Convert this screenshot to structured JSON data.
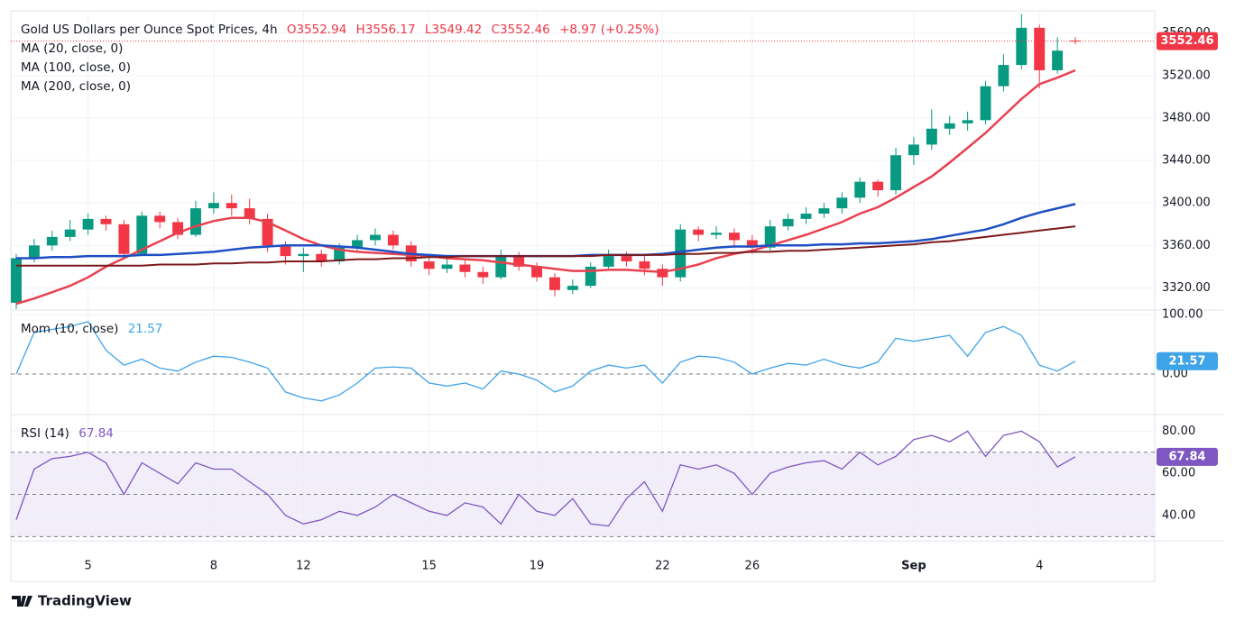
{
  "brand": "TradingView",
  "chart_data": [
    {
      "type": "candlestick",
      "title": "Gold US Dollars per Ounce Spot Prices, 4h",
      "header_values": [
        "O3552.94",
        "H3556.17",
        "L3549.42",
        "C3552.46",
        "+8.97 (+0.25%)"
      ],
      "categories": [
        null,
        null,
        null,
        null,
        "5",
        null,
        null,
        null,
        null,
        null,
        null,
        "8",
        null,
        null,
        null,
        null,
        "12",
        null,
        null,
        null,
        null,
        null,
        null,
        "15",
        null,
        null,
        null,
        null,
        null,
        "19",
        null,
        null,
        null,
        null,
        null,
        null,
        "22",
        null,
        null,
        null,
        null,
        "26",
        null,
        null,
        null,
        null,
        null,
        null,
        null,
        null,
        "Sep",
        null,
        null,
        null,
        null,
        null,
        null,
        "4",
        null,
        null
      ],
      "open": [
        3306,
        3348,
        3360,
        3368,
        3375,
        3385,
        3380,
        3352,
        3388,
        3382,
        3370,
        3395,
        3400,
        3395,
        3385,
        3360,
        3350,
        3352,
        3345,
        3358,
        3365,
        3370,
        3360,
        3345,
        3338,
        3342,
        3335,
        3330,
        3350,
        3340,
        3330,
        3318,
        3322,
        3340,
        3350,
        3345,
        3338,
        3330,
        3375,
        3370,
        3372,
        3365,
        3358,
        3378,
        3385,
        3390,
        3395,
        3405,
        3420,
        3412,
        3445,
        3455,
        3470,
        3475,
        3478,
        3510,
        3530,
        3565,
        3525,
        3552.94
      ],
      "high": [
        3352,
        3366,
        3374,
        3384,
        3390,
        3388,
        3384,
        3392,
        3392,
        3386,
        3402,
        3410,
        3408,
        3404,
        3390,
        3364,
        3358,
        3356,
        3362,
        3370,
        3376,
        3374,
        3364,
        3350,
        3348,
        3346,
        3340,
        3356,
        3354,
        3344,
        3334,
        3328,
        3344,
        3356,
        3354,
        3350,
        3342,
        3380,
        3378,
        3378,
        3376,
        3370,
        3384,
        3390,
        3396,
        3400,
        3410,
        3424,
        3422,
        3452,
        3462,
        3488,
        3482,
        3486,
        3515,
        3540,
        3578,
        3568,
        3556,
        3556.17
      ],
      "low": [
        3300,
        3344,
        3355,
        3364,
        3370,
        3374,
        3348,
        3350,
        3376,
        3366,
        3368,
        3390,
        3388,
        3380,
        3354,
        3342,
        3335,
        3340,
        3342,
        3354,
        3360,
        3356,
        3340,
        3332,
        3334,
        3330,
        3324,
        3328,
        3336,
        3326,
        3312,
        3314,
        3320,
        3336,
        3340,
        3332,
        3322,
        3326,
        3364,
        3366,
        3360,
        3352,
        3355,
        3374,
        3380,
        3386,
        3390,
        3400,
        3406,
        3408,
        3436,
        3450,
        3464,
        3468,
        3474,
        3505,
        3526,
        3508,
        3522,
        3549.42
      ],
      "close": [
        3348,
        3360,
        3368,
        3375,
        3385,
        3380,
        3352,
        3388,
        3382,
        3370,
        3395,
        3400,
        3395,
        3385,
        3360,
        3350,
        3352,
        3345,
        3358,
        3365,
        3370,
        3360,
        3345,
        3338,
        3342,
        3335,
        3330,
        3350,
        3340,
        3330,
        3318,
        3322,
        3340,
        3350,
        3345,
        3338,
        3330,
        3375,
        3370,
        3372,
        3365,
        3358,
        3378,
        3385,
        3390,
        3395,
        3405,
        3420,
        3412,
        3445,
        3455,
        3470,
        3475,
        3478,
        3510,
        3530,
        3565,
        3525,
        3543.49,
        3552.46
      ],
      "up_color": "#089981",
      "down_color": "#f23645",
      "series": [
        {
          "name": "MA (20, close, 0)",
          "color": "#e8414f",
          "values": [
            3305,
            3310,
            3316,
            3322,
            3330,
            3340,
            3348,
            3356,
            3364,
            3372,
            3378,
            3383,
            3386,
            3386,
            3382,
            3374,
            3366,
            3360,
            3356,
            3354,
            3353,
            3352,
            3351,
            3350,
            3348,
            3347,
            3346,
            3344,
            3342,
            3340,
            3338,
            3336,
            3336,
            3337,
            3337,
            3336,
            3335,
            3338,
            3342,
            3348,
            3352,
            3355,
            3360,
            3365,
            3370,
            3376,
            3382,
            3390,
            3396,
            3405,
            3415,
            3425,
            3438,
            3452,
            3466,
            3482,
            3498,
            3512,
            3518,
            3525
          ]
        },
        {
          "name": "MA (100, close, 0)",
          "color": "#1e4fc4",
          "values": [
            3348,
            3348,
            3349,
            3349,
            3350,
            3350,
            3350,
            3351,
            3351,
            3352,
            3353,
            3354,
            3356,
            3358,
            3359,
            3360,
            3360,
            3360,
            3359,
            3358,
            3356,
            3354,
            3352,
            3351,
            3350,
            3350,
            3350,
            3350,
            3350,
            3350,
            3350,
            3350,
            3351,
            3351,
            3351,
            3351,
            3352,
            3354,
            3356,
            3358,
            3359,
            3359,
            3360,
            3360,
            3360,
            3361,
            3361,
            3362,
            3362,
            3363,
            3364,
            3366,
            3369,
            3372,
            3375,
            3380,
            3386,
            3391,
            3395,
            3399
          ]
        },
        {
          "name": "MA (200, close, 0)",
          "color": "#7b1a1a",
          "values": [
            3341,
            3341,
            3341,
            3341,
            3341,
            3341,
            3341,
            3341,
            3342,
            3342,
            3342,
            3343,
            3343,
            3344,
            3344,
            3345,
            3345,
            3345,
            3346,
            3347,
            3347,
            3348,
            3348,
            3349,
            3349,
            3350,
            3350,
            3350,
            3350,
            3350,
            3350,
            3350,
            3350,
            3351,
            3351,
            3351,
            3351,
            3352,
            3352,
            3353,
            3353,
            3354,
            3354,
            3355,
            3355,
            3356,
            3357,
            3358,
            3359,
            3360,
            3361,
            3363,
            3364,
            3366,
            3368,
            3370,
            3372,
            3374,
            3376,
            3378
          ]
        }
      ],
      "ylim": [
        3300,
        3581
      ],
      "yticks": [
        {
          "value": 3320,
          "label": "3320.00"
        },
        {
          "value": 3360,
          "label": "3360.00"
        },
        {
          "value": 3400,
          "label": "3400.00"
        },
        {
          "value": 3440,
          "label": "3440.00"
        },
        {
          "value": 3480,
          "label": "3480.00"
        },
        {
          "value": 3520,
          "label": "3520.00"
        },
        {
          "value": 3560,
          "label": "3560.00"
        }
      ],
      "grid": true
    },
    {
      "type": "line",
      "series": [
        {
          "name": "Mom (10, close)",
          "color": "#3fa3e8",
          "values": [
            0,
            70,
            75,
            80,
            88,
            40,
            15,
            25,
            10,
            5,
            20,
            30,
            28,
            20,
            10,
            -30,
            -40,
            -45,
            -35,
            -15,
            10,
            12,
            10,
            -15,
            -20,
            -15,
            -25,
            5,
            0,
            -10,
            -30,
            -20,
            5,
            15,
            10,
            15,
            -15,
            20,
            30,
            28,
            20,
            0,
            10,
            18,
            15,
            25,
            15,
            10,
            20,
            60,
            55,
            60,
            65,
            30,
            70,
            80,
            65,
            15,
            5,
            21.57
          ]
        }
      ],
      "ylim": [
        -65,
        106
      ],
      "yticks": [
        {
          "value": 100,
          "label": "100.00"
        },
        {
          "value": 0,
          "label": "0.00"
        }
      ],
      "levels": [
        0
      ]
    },
    {
      "type": "line",
      "series": [
        {
          "name": "RSI (14)",
          "color": "#7e57c2",
          "values": [
            38,
            62,
            67,
            68,
            70,
            65,
            50,
            65,
            60,
            55,
            65,
            62,
            62,
            56,
            50,
            40,
            36,
            38,
            42,
            40,
            44,
            50,
            46,
            42,
            40,
            46,
            44,
            36,
            50,
            42,
            40,
            48,
            36,
            35,
            48,
            56,
            42,
            64,
            62,
            64,
            60,
            50,
            60,
            63,
            65,
            66,
            62,
            70,
            64,
            68,
            76,
            78,
            75,
            80,
            68,
            78,
            80,
            75,
            63,
            67.84
          ]
        }
      ],
      "ylim": [
        28,
        87
      ],
      "yticks": [
        {
          "value": 80,
          "label": "80.00"
        },
        {
          "value": 60,
          "label": "60.00"
        },
        {
          "value": 40,
          "label": "40.00"
        }
      ],
      "levels": [
        70,
        50,
        30
      ],
      "band": [
        30,
        70
      ]
    }
  ]
}
